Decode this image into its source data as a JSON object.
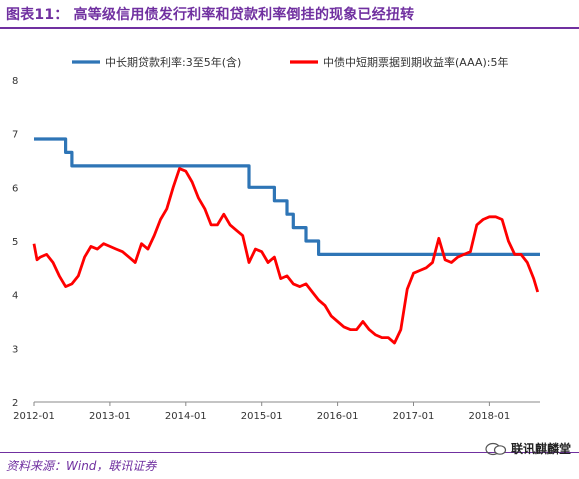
{
  "figure": {
    "title": "图表11：  高等级信用债发行利率和贷款利率倒挂的现象已经扭转",
    "source": "资料来源：Wind，联讯证券",
    "watermark": "联讯麒麟堂"
  },
  "colors": {
    "accent": "#7030a0",
    "loan_rate": "#2e75b6",
    "note_yield": "#ff0000"
  },
  "chart_data": {
    "type": "line",
    "xlabel": "",
    "ylabel": "",
    "ylim": [
      2,
      8
    ],
    "yticks": [
      "2",
      "3",
      "4",
      "5",
      "6",
      "7",
      "8"
    ],
    "xlim": [
      "2012-01",
      "2018-09"
    ],
    "xticks": [
      "2012-01",
      "2013-01",
      "2014-01",
      "2015-01",
      "2016-01",
      "2017-01",
      "2018-01"
    ],
    "legend_position": "top",
    "grid": false,
    "series": [
      {
        "name": "中长期贷款利率:3至5年(含)",
        "color": "#2e75b6",
        "step": true,
        "points": [
          [
            "2012-01",
            6.9
          ],
          [
            "2012-06",
            6.65
          ],
          [
            "2012-07",
            6.4
          ],
          [
            "2014-11",
            6.0
          ],
          [
            "2015-03",
            5.75
          ],
          [
            "2015-05",
            5.5
          ],
          [
            "2015-06",
            5.25
          ],
          [
            "2015-08",
            5.0
          ],
          [
            "2015-10",
            4.75
          ],
          [
            "2018-09",
            4.75
          ]
        ]
      },
      {
        "name": "中债中短期票据到期收益率(AAA):5年",
        "color": "#ff0000",
        "step": false,
        "points": [
          [
            "2012-01",
            4.95
          ],
          [
            "2012-01-15",
            4.65
          ],
          [
            "2012-02",
            4.7
          ],
          [
            "2012-03",
            4.75
          ],
          [
            "2012-04",
            4.6
          ],
          [
            "2012-05",
            4.35
          ],
          [
            "2012-06",
            4.15
          ],
          [
            "2012-07",
            4.2
          ],
          [
            "2012-08",
            4.35
          ],
          [
            "2012-09",
            4.7
          ],
          [
            "2012-10",
            4.9
          ],
          [
            "2012-11",
            4.85
          ],
          [
            "2012-12",
            4.95
          ],
          [
            "2013-01",
            4.9
          ],
          [
            "2013-02",
            4.85
          ],
          [
            "2013-03",
            4.8
          ],
          [
            "2013-04",
            4.7
          ],
          [
            "2013-05",
            4.6
          ],
          [
            "2013-06",
            4.95
          ],
          [
            "2013-07",
            4.85
          ],
          [
            "2013-08",
            5.1
          ],
          [
            "2013-09",
            5.4
          ],
          [
            "2013-10",
            5.6
          ],
          [
            "2013-11",
            6.0
          ],
          [
            "2013-12",
            6.35
          ],
          [
            "2014-01",
            6.3
          ],
          [
            "2014-02",
            6.1
          ],
          [
            "2014-03",
            5.8
          ],
          [
            "2014-04",
            5.6
          ],
          [
            "2014-05",
            5.3
          ],
          [
            "2014-06",
            5.3
          ],
          [
            "2014-07",
            5.5
          ],
          [
            "2014-08",
            5.3
          ],
          [
            "2014-09",
            5.2
          ],
          [
            "2014-10",
            5.1
          ],
          [
            "2014-11",
            4.6
          ],
          [
            "2014-12",
            4.85
          ],
          [
            "2015-01",
            4.8
          ],
          [
            "2015-02",
            4.6
          ],
          [
            "2015-03",
            4.7
          ],
          [
            "2015-04",
            4.3
          ],
          [
            "2015-05",
            4.35
          ],
          [
            "2015-06",
            4.2
          ],
          [
            "2015-07",
            4.15
          ],
          [
            "2015-08",
            4.2
          ],
          [
            "2015-09",
            4.05
          ],
          [
            "2015-10",
            3.9
          ],
          [
            "2015-11",
            3.8
          ],
          [
            "2015-12",
            3.6
          ],
          [
            "2016-01",
            3.5
          ],
          [
            "2016-02",
            3.4
          ],
          [
            "2016-03",
            3.35
          ],
          [
            "2016-04",
            3.35
          ],
          [
            "2016-05",
            3.5
          ],
          [
            "2016-06",
            3.35
          ],
          [
            "2016-07",
            3.25
          ],
          [
            "2016-08",
            3.2
          ],
          [
            "2016-09",
            3.2
          ],
          [
            "2016-10",
            3.1
          ],
          [
            "2016-11",
            3.35
          ],
          [
            "2016-12",
            4.1
          ],
          [
            "2017-01",
            4.4
          ],
          [
            "2017-02",
            4.45
          ],
          [
            "2017-03",
            4.5
          ],
          [
            "2017-04",
            4.6
          ],
          [
            "2017-05",
            5.05
          ],
          [
            "2017-06",
            4.65
          ],
          [
            "2017-07",
            4.6
          ],
          [
            "2017-08",
            4.7
          ],
          [
            "2017-09",
            4.75
          ],
          [
            "2017-10",
            4.8
          ],
          [
            "2017-11",
            5.3
          ],
          [
            "2017-12",
            5.4
          ],
          [
            "2018-01",
            5.45
          ],
          [
            "2018-02",
            5.45
          ],
          [
            "2018-03",
            5.4
          ],
          [
            "2018-04",
            5.0
          ],
          [
            "2018-05",
            4.75
          ],
          [
            "2018-06",
            4.75
          ],
          [
            "2018-07",
            4.6
          ],
          [
            "2018-08",
            4.3
          ],
          [
            "2018-08-20",
            4.05
          ]
        ]
      }
    ]
  }
}
